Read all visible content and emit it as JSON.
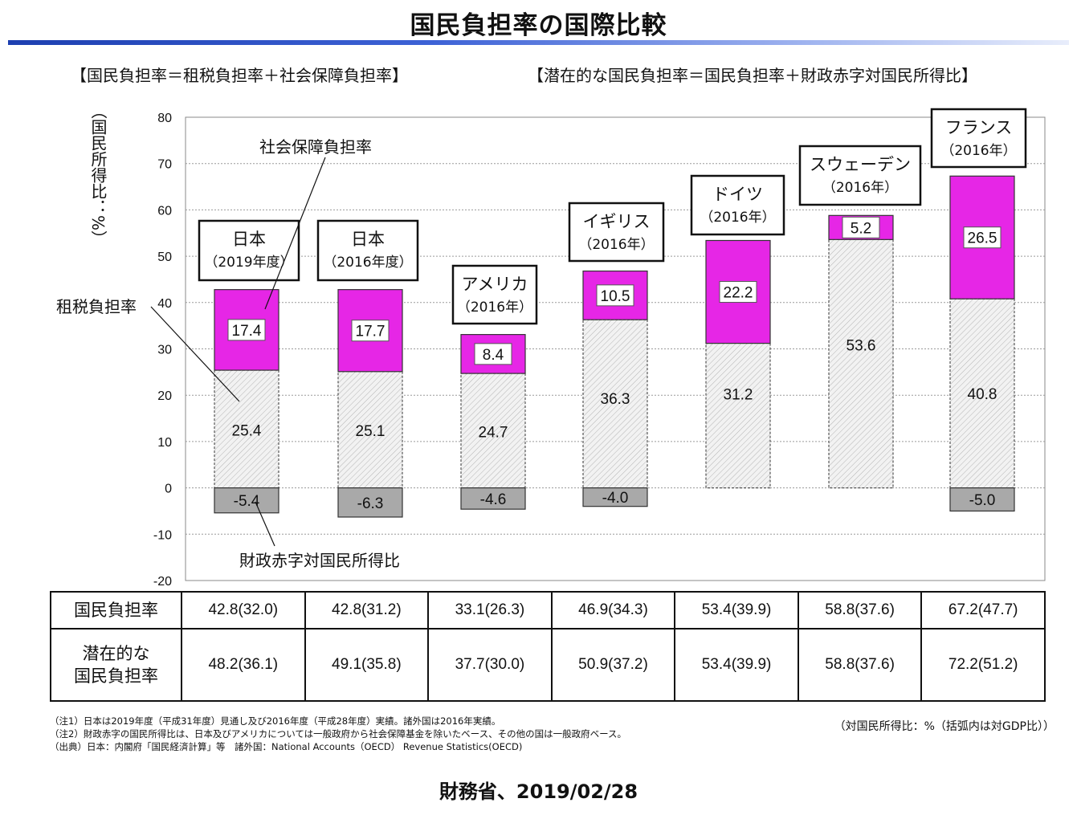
{
  "title": "国民負担率の国際比較",
  "formula_left": "【国民負担率＝租税負担率＋社会保障負担率】",
  "formula_right": "【潜在的な国民負担率＝国民負担率＋財政赤字対国民所得比】",
  "colors": {
    "social": "#e626e6",
    "tax": "#efefef",
    "deficit": "#a9a9a9",
    "title_rule": "#2b4fc7"
  },
  "chart_data": {
    "type": "bar",
    "stacked": true,
    "ylabel": "（国民所得比：%）",
    "ylim": [
      -20,
      80
    ],
    "yticks": [
      -20,
      -10,
      0,
      10,
      20,
      30,
      40,
      50,
      60,
      70,
      80
    ],
    "grid": true,
    "categories": [
      {
        "name": "日本",
        "sub": "（2019年度）"
      },
      {
        "name": "日本",
        "sub": "（2016年度）"
      },
      {
        "name": "アメリカ",
        "sub": "（2016年）"
      },
      {
        "name": "イギリス",
        "sub": "（2016年）"
      },
      {
        "name": "ドイツ",
        "sub": "（2016年）"
      },
      {
        "name": "スウェーデン",
        "sub": "（2016年）"
      },
      {
        "name": "フランス",
        "sub": "（2016年）"
      }
    ],
    "series": [
      {
        "name": "租税負担率",
        "values": [
          25.4,
          25.1,
          24.7,
          36.3,
          31.2,
          53.6,
          40.8
        ]
      },
      {
        "name": "社会保障負担率",
        "values": [
          17.4,
          17.7,
          8.4,
          10.5,
          22.2,
          5.2,
          26.5
        ]
      },
      {
        "name": "財政赤字対国民所得比",
        "values": [
          -5.4,
          -6.3,
          -4.6,
          -4.0,
          null,
          null,
          -5.0
        ]
      }
    ]
  },
  "table": {
    "rows": [
      {
        "label": "国民負担率",
        "values": [
          "42.8(32.0)",
          "42.8(31.2)",
          "33.1(26.3)",
          "46.9(34.3)",
          "53.4(39.9)",
          "58.8(37.6)",
          "67.2(47.7)"
        ]
      },
      {
        "label": "潜在的な\n国民負担率",
        "values": [
          "48.2(36.1)",
          "49.1(35.8)",
          "37.7(30.0)",
          "50.9(37.2)",
          "53.4(39.9)",
          "58.8(37.6)",
          "72.2(51.2)"
        ]
      }
    ]
  },
  "notes": [
    "（注1）日本は2019年度（平成31年度）見通し及び2016年度（平成28年度）実績。諸外国は2016年実績。",
    "（注2）財政赤字の国民所得比は、日本及びアメリカについては一般政府から社会保障基金を除いたベース、その他の国は一般政府ベース。",
    "（出典）日本：内閣府「国民経済計算」等　諸外国：National Accounts（OECD） Revenue Statistics(OECD)"
  ],
  "unit_note": "（対国民所得比：%（括弧内は対GDP比））",
  "footer": "財務省、2019/02/28"
}
